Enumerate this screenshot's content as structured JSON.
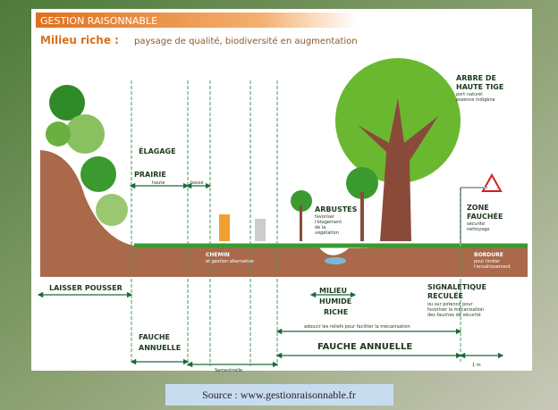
{
  "header": {
    "banner": "GESTION RAISONNABLE",
    "subtitle_bold": "Milieu riche :",
    "subtitle": "paysage de qualité, biodiversité en augmentation"
  },
  "labels": {
    "elagage": "ÉLAGAGE",
    "prairie": "PRAIRIE",
    "haute": "haute",
    "basse": "basse",
    "arbre_1": "ARBRE DE",
    "arbre_2": "HAUTE TIGE",
    "arbre_note_1": "port naturel",
    "arbre_note_2": "essence indigène",
    "arbustes": "ARBUSTES",
    "arbustes_note_1": "favoriser",
    "arbustes_note_2": "l'étagement",
    "arbustes_note_3": "de la",
    "arbustes_note_4": "végétation",
    "zone_1": "ZONE",
    "zone_2": "FAUCHÉE",
    "zone_note_1": "sécurité",
    "zone_note_2": "nettoyage",
    "chemin": "CHEMIN",
    "chemin_note": "et gestion alternative",
    "bordure": "BORDURE",
    "bordure_note_1": "pour limiter",
    "bordure_note_2": "l'envahissement",
    "laisser": "LAISSER POUSSER",
    "milieu_1": "MILIEU",
    "milieu_2": "HUMIDE",
    "milieu_3": "RICHE",
    "signal_1": "SIGNALÉTIQUE",
    "signal_2": "RECULÉE",
    "signal_note_1": "ou sur potence pour",
    "signal_note_2": "favoriser la mécanisation",
    "signal_note_3": "des fauches de sécurité",
    "adoucir": "adoucir les reliefs pour faciliter la mécanisation",
    "fauche_left_1": "FAUCHE",
    "fauche_left_2": "ANNUELLE",
    "fauche_right": "FAUCHE ANNUELLE",
    "semestrielle": "Semestrielle",
    "un_metre": "1 m"
  },
  "source": "Source : www.gestionraisonnable.fr"
}
